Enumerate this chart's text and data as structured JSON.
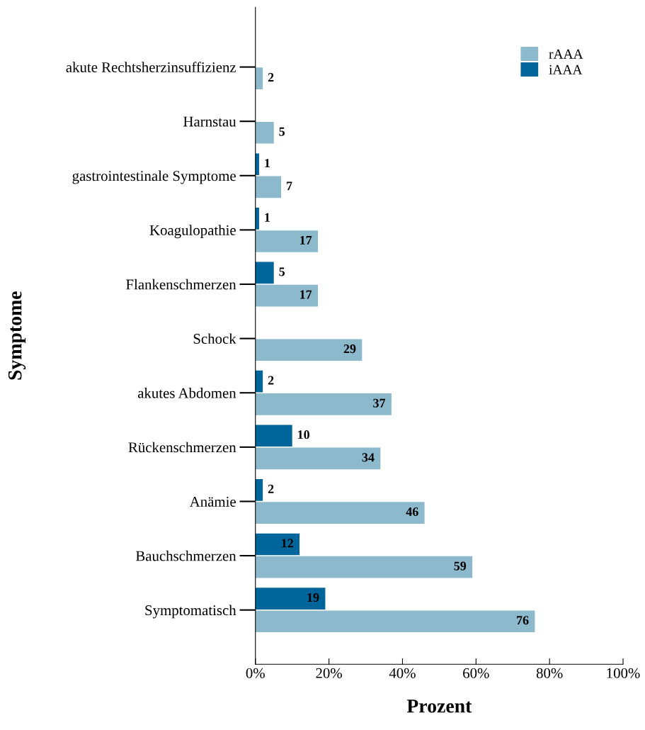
{
  "chart_data": {
    "type": "bar",
    "orientation": "horizontal",
    "xlabel": "Prozent",
    "ylabel": "Symptome",
    "categories": [
      "akute Rechtsherzinsuffizienz",
      "Harnstau",
      "gastrointestinale Symptome",
      "Koagulopathie",
      "Flankenschmerzen",
      "Schock",
      "akutes Abdomen",
      "Rückenschmerzen",
      "Anämie",
      "Bauchschmerzen",
      "Symptomatisch"
    ],
    "series": [
      {
        "name": "rAAA",
        "color": "#8cb9cc",
        "values": [
          2,
          5,
          7,
          17,
          17,
          29,
          37,
          34,
          46,
          59,
          76
        ]
      },
      {
        "name": "iAAA",
        "color": "#00659a",
        "values": [
          null,
          null,
          1,
          1,
          5,
          null,
          2,
          10,
          2,
          12,
          19
        ]
      }
    ],
    "xlim": [
      0,
      100
    ],
    "xticks": [
      {
        "value": 0,
        "label": "0%"
      },
      {
        "value": 20,
        "label": "20%"
      },
      {
        "value": 40,
        "label": "40%"
      },
      {
        "value": 60,
        "label": "60%"
      },
      {
        "value": 80,
        "label": "80%"
      },
      {
        "value": 100,
        "label": "100%"
      }
    ],
    "data_labels": true,
    "legend": "top right",
    "grid": false
  }
}
